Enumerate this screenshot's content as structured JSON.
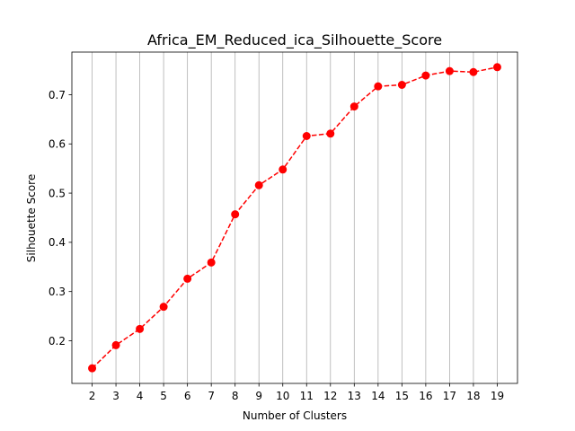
{
  "chart_data": {
    "type": "line",
    "title": "Africa_EM_Reduced_ica_Silhouette_Score",
    "xlabel": "Number of Clusters",
    "ylabel": "Silhouette Score",
    "x": [
      2,
      3,
      4,
      5,
      6,
      7,
      8,
      9,
      10,
      11,
      12,
      13,
      14,
      15,
      16,
      17,
      18,
      19
    ],
    "series": [
      {
        "values": [
          0.144,
          0.191,
          0.224,
          0.269,
          0.326,
          0.359,
          0.457,
          0.516,
          0.548,
          0.616,
          0.621,
          0.676,
          0.717,
          0.72,
          0.739,
          0.748,
          0.746,
          0.756
        ],
        "color": "#ff0000",
        "line_style": "dashed",
        "marker": "circle"
      }
    ],
    "x_ticks": [
      "2",
      "3",
      "4",
      "5",
      "6",
      "7",
      "8",
      "9",
      "10",
      "11",
      "12",
      "13",
      "14",
      "15",
      "16",
      "17",
      "18",
      "19"
    ],
    "y_ticks": [
      0.2,
      0.3,
      0.4,
      0.5,
      0.6,
      0.7
    ],
    "y_tick_labels": [
      "0.2",
      "0.3",
      "0.4",
      "0.5",
      "0.6",
      "0.7"
    ],
    "xlim": [
      1.15,
      19.85
    ],
    "ylim": [
      0.1133,
      0.7866
    ],
    "grid": "x-axis vertical lines only",
    "grid_color": "#b0b0b0"
  }
}
